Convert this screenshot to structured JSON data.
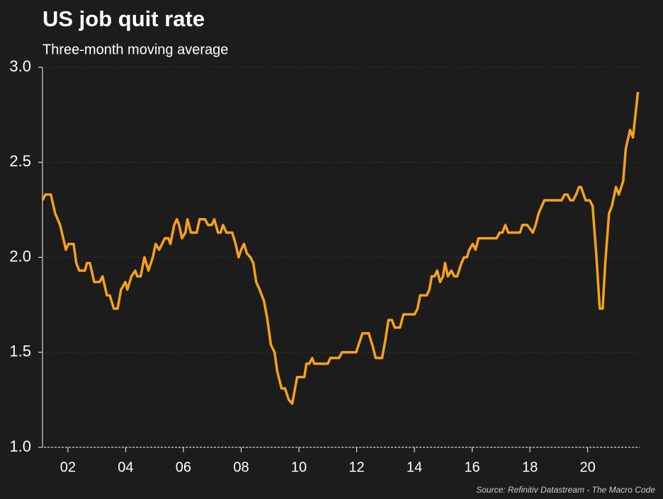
{
  "chart_data": {
    "type": "line",
    "title": "US job quit rate",
    "subtitle": "Three-month moving average",
    "source": "Source: Refinitiv Datastream - The Macro Code",
    "color": "#f7a11a",
    "grid": true,
    "x": [
      2001.12,
      2001.22,
      2001.41,
      2001.56,
      2001.73,
      2001.93,
      2002.02,
      2002.2,
      2002.29,
      2002.39,
      2002.59,
      2002.66,
      2002.76,
      2002.91,
      2003.1,
      2003.2,
      2003.35,
      2003.45,
      2003.59,
      2003.72,
      2003.84,
      2003.99,
      2004.06,
      2004.2,
      2004.33,
      2004.4,
      2004.52,
      2004.65,
      2004.79,
      2004.94,
      2005.04,
      2005.16,
      2005.26,
      2005.36,
      2005.48,
      2005.55,
      2005.68,
      2005.77,
      2005.85,
      2005.95,
      2006.07,
      2006.14,
      2006.26,
      2006.46,
      2006.56,
      2006.75,
      2006.85,
      2006.98,
      2007.07,
      2007.2,
      2007.29,
      2007.37,
      2007.49,
      2007.69,
      2007.81,
      2007.91,
      2008.0,
      2008.1,
      2008.2,
      2008.32,
      2008.42,
      2008.52,
      2008.64,
      2008.79,
      2008.91,
      2009.03,
      2009.16,
      2009.25,
      2009.4,
      2009.52,
      2009.65,
      2009.77,
      2009.94,
      2010.19,
      2010.26,
      2010.36,
      2010.46,
      2010.53,
      2011.0,
      2011.09,
      2011.39,
      2011.49,
      2011.98,
      2012.2,
      2012.42,
      2012.56,
      2012.66,
      2012.88,
      2013.0,
      2013.1,
      2013.22,
      2013.32,
      2013.5,
      2013.62,
      2014.01,
      2014.11,
      2014.2,
      2014.43,
      2014.52,
      2014.6,
      2014.7,
      2014.79,
      2014.89,
      2014.99,
      2015.06,
      2015.16,
      2015.28,
      2015.38,
      2015.48,
      2015.63,
      2015.72,
      2015.82,
      2015.9,
      2016.02,
      2016.12,
      2016.22,
      2016.85,
      2016.95,
      2017.05,
      2017.15,
      2017.25,
      2017.66,
      2017.74,
      2017.91,
      2018.1,
      2018.2,
      2018.3,
      2018.5,
      2019.1,
      2019.2,
      2019.3,
      2019.4,
      2019.5,
      2019.6,
      2019.7,
      2019.77,
      2019.93,
      2020.07,
      2020.17,
      2020.3,
      2020.42,
      2020.52,
      2020.61,
      2020.74,
      2020.84,
      2020.98,
      2021.08,
      2021.23,
      2021.32,
      2021.47,
      2021.57,
      2021.74
    ],
    "values": [
      2.3,
      2.33,
      2.33,
      2.23,
      2.17,
      2.04,
      2.07,
      2.07,
      1.97,
      1.93,
      1.93,
      1.97,
      1.97,
      1.87,
      1.87,
      1.9,
      1.8,
      1.8,
      1.73,
      1.73,
      1.83,
      1.87,
      1.83,
      1.9,
      1.93,
      1.9,
      1.9,
      2.0,
      1.93,
      2.0,
      2.07,
      2.04,
      2.07,
      2.1,
      2.1,
      2.07,
      2.17,
      2.2,
      2.17,
      2.1,
      2.13,
      2.2,
      2.13,
      2.13,
      2.2,
      2.2,
      2.17,
      2.17,
      2.2,
      2.13,
      2.13,
      2.17,
      2.13,
      2.13,
      2.07,
      2.0,
      2.04,
      2.07,
      2.02,
      2.0,
      1.97,
      1.87,
      1.83,
      1.77,
      1.67,
      1.54,
      1.5,
      1.4,
      1.31,
      1.31,
      1.25,
      1.23,
      1.37,
      1.37,
      1.44,
      1.44,
      1.47,
      1.44,
      1.44,
      1.47,
      1.47,
      1.5,
      1.5,
      1.6,
      1.6,
      1.53,
      1.47,
      1.47,
      1.57,
      1.67,
      1.67,
      1.63,
      1.63,
      1.7,
      1.7,
      1.73,
      1.8,
      1.8,
      1.83,
      1.9,
      1.9,
      1.93,
      1.87,
      1.9,
      1.97,
      1.9,
      1.93,
      1.9,
      1.9,
      1.97,
      2.0,
      2.0,
      2.04,
      2.07,
      2.04,
      2.1,
      2.1,
      2.13,
      2.13,
      2.17,
      2.13,
      2.13,
      2.17,
      2.17,
      2.13,
      2.17,
      2.23,
      2.3,
      2.3,
      2.33,
      2.33,
      2.3,
      2.3,
      2.33,
      2.37,
      2.37,
      2.3,
      2.3,
      2.27,
      2.01,
      1.73,
      1.73,
      1.97,
      2.23,
      2.27,
      2.37,
      2.33,
      2.4,
      2.57,
      2.67,
      2.63,
      2.87
    ],
    "xlim": [
      2001.12,
      2021.8
    ],
    "xticks": [
      {
        "value": 2002,
        "label": "02"
      },
      {
        "value": 2004,
        "label": "04"
      },
      {
        "value": 2006,
        "label": "06"
      },
      {
        "value": 2008,
        "label": "08"
      },
      {
        "value": 2010,
        "label": "10"
      },
      {
        "value": 2012,
        "label": "12"
      },
      {
        "value": 2014,
        "label": "14"
      },
      {
        "value": 2016,
        "label": "16"
      },
      {
        "value": 2018,
        "label": "18"
      },
      {
        "value": 2020,
        "label": "20"
      }
    ],
    "ylim": [
      1,
      3
    ],
    "yticks": [
      {
        "value": 1,
        "label": "1.0"
      },
      {
        "value": 1.5,
        "label": "1.5"
      },
      {
        "value": 2,
        "label": "2.0"
      },
      {
        "value": 2.5,
        "label": "2.5"
      },
      {
        "value": 3,
        "label": "3.0"
      }
    ]
  }
}
